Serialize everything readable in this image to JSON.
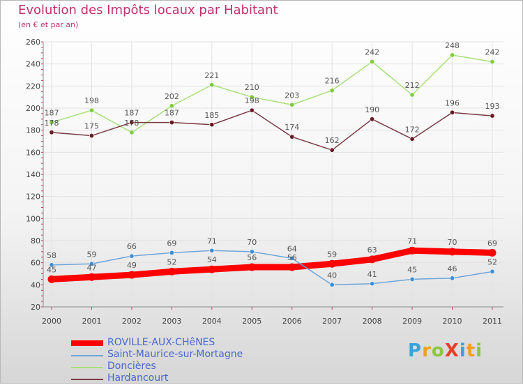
{
  "header": {
    "title": "Evolution des Impôts locaux par Habitant",
    "subtitle": "(en € et par an)"
  },
  "logo": {
    "text": "ProXiti",
    "colors": [
      "#3aa2d8",
      "#f0a020",
      "#8cc63f",
      "#e8402a",
      "#3aa2d8",
      "#f0a020",
      "#8cc63f"
    ]
  },
  "chart_data": {
    "type": "line",
    "title": "Evolution des Impôts locaux par Habitant",
    "subtitle": "(en € et par an)",
    "x": [
      "2000",
      "2001",
      "2002",
      "2003",
      "2004",
      "2005",
      "2006",
      "2007",
      "2008",
      "2009",
      "2010",
      "2011"
    ],
    "ylim": [
      20,
      260
    ],
    "yticks": [
      20,
      40,
      60,
      80,
      100,
      120,
      140,
      160,
      180,
      200,
      220,
      240,
      260
    ],
    "grid": true,
    "legend_position": "bottom-left",
    "series": [
      {
        "name": "ROVILLE-AUX-CHêNES",
        "color": "#ff0000",
        "marker_color": "#ff0000",
        "label_color": "#555555",
        "bold": true,
        "values": [
          45,
          47,
          49,
          52,
          54,
          56,
          56,
          59,
          63,
          71,
          70,
          69
        ]
      },
      {
        "name": "Saint-Maurice-sur-Mortagne",
        "color": "#6fa6d8",
        "marker_color": "#3d8fd6",
        "label_color": "#555555",
        "bold": false,
        "values": [
          58,
          59,
          66,
          69,
          71,
          70,
          64,
          40,
          41,
          45,
          46,
          52
        ]
      },
      {
        "name": "Doncières",
        "color": "#a8e07a",
        "marker_color": "#7ccc3c",
        "label_color": "#555555",
        "bold": false,
        "values": [
          187,
          198,
          178,
          202,
          221,
          210,
          203,
          216,
          242,
          212,
          248,
          242
        ]
      },
      {
        "name": "Hardancourt",
        "color": "#7a3a44",
        "marker_color": "#6a1a24",
        "label_color": "#555555",
        "bold": false,
        "values": [
          178,
          175,
          187,
          187,
          185,
          198,
          174,
          162,
          190,
          172,
          196,
          193
        ]
      }
    ]
  }
}
